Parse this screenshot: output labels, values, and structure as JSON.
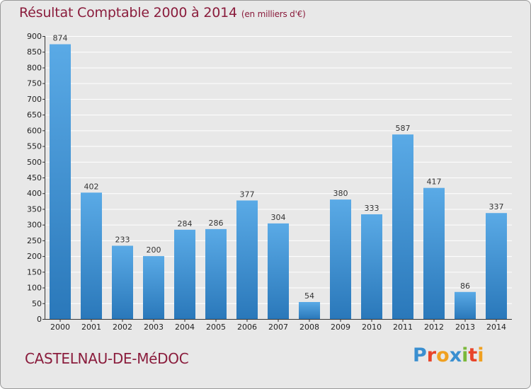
{
  "header": {
    "title": "Résultat Comptable 2000 à 2014",
    "subtitle": "(en milliers d'€)"
  },
  "footer": {
    "town": "CASTELNAU-DE-MéDOC",
    "logo_letters": [
      "P",
      "r",
      "o",
      "x",
      "i",
      "t",
      "i"
    ],
    "logo_colors": [
      "#3a8fd0",
      "#e8442a",
      "#f0a020",
      "#3a8fd0",
      "#7ab83a",
      "#e8442a",
      "#f0a020"
    ]
  },
  "chart_data": {
    "type": "bar",
    "title": "Résultat Comptable 2000 à 2014",
    "ylabel": "en milliers d'€",
    "xlabel": "",
    "categories": [
      "2000",
      "2001",
      "2002",
      "2003",
      "2004",
      "2005",
      "2006",
      "2007",
      "2008",
      "2009",
      "2010",
      "2011",
      "2012",
      "2013",
      "2014"
    ],
    "values": [
      874,
      402,
      233,
      200,
      284,
      286,
      377,
      304,
      54,
      380,
      333,
      587,
      417,
      86,
      337
    ],
    "ylim": [
      0,
      900
    ],
    "yticks": [
      0,
      50,
      100,
      150,
      200,
      250,
      300,
      350,
      400,
      450,
      500,
      550,
      600,
      650,
      700,
      750,
      800,
      850,
      900
    ],
    "grid": true,
    "bar_color": "#3b8fd4",
    "grid_color": "#ffffff",
    "background_color": "#e8e8e8"
  }
}
